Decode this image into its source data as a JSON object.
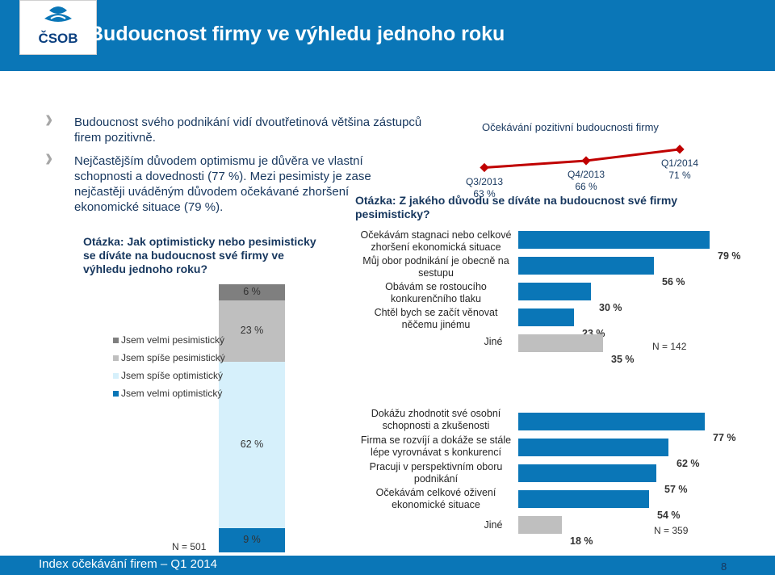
{
  "header": {
    "title": "Budoucnost firmy ve výhledu jednoho roku",
    "logo_text": "ČSOB"
  },
  "bullets": [
    "Budoucnost svého podnikání vidí dvoutřetinová většina zástupců firem pozitivně.",
    "Nejčastějším důvodem optimismu je důvěra ve vlastní schopnosti a dovednosti (77 %). Mezi pesimisty je zase nejčastěji uváděným důvodem očekávané zhoršení ekonomické situace (79 %)."
  ],
  "chart_data": [
    {
      "type": "line",
      "title": "Očekávání pozitivní budoucnosti firmy",
      "categories": [
        "Q3/2013",
        "Q4/2013",
        "Q1/2014"
      ],
      "values": [
        63,
        66,
        71
      ],
      "value_labels": [
        "63 %",
        "66 %",
        "71 %"
      ],
      "color": "#c00000"
    },
    {
      "type": "bar",
      "stacked": true,
      "title": "Otázka: Jak optimisticky nebo pesimisticky se díváte na budoucnost své firmy ve výhledu jednoho roku?",
      "legend": [
        "Jsem velmi pesimistický",
        "Jsem spíše pesimistický",
        "Jsem spíše optimistický",
        "Jsem velmi optimistický"
      ],
      "segments": [
        {
          "name": "Jsem velmi pesimistický",
          "value": 6,
          "label": "6 %",
          "color": "#7f7f7f"
        },
        {
          "name": "Jsem spíše pesimistický",
          "value": 23,
          "label": "23 %",
          "color": "#bfbfbf"
        },
        {
          "name": "Jsem spíše optimistický",
          "value": 62,
          "label": "62 %",
          "color": "#d6f0fb"
        },
        {
          "name": "Jsem velmi optimistický",
          "value": 9,
          "label": "9 %",
          "color": "#0a76b7"
        }
      ],
      "n_label": "N = 501"
    },
    {
      "type": "bar",
      "orientation": "horizontal",
      "title": "Otázka: Z jakého důvodu se díváte na budoucnost své firmy pesimisticky?",
      "categories": [
        "Očekávám stagnaci nebo celkové zhoršení ekonomická situace",
        "Můj obor podnikání je obecně na sestupu",
        "Obávám se rostoucího konkurenčního tlaku",
        "Chtěl bych se začít věnovat něčemu jinému",
        "Jiné"
      ],
      "values": [
        79,
        56,
        30,
        23,
        35
      ],
      "value_labels": [
        "79 %",
        "56 %",
        "30 %",
        "23 %",
        "35 %"
      ],
      "colors": [
        "#0a76b7",
        "#0a76b7",
        "#0a76b7",
        "#0a76b7",
        "#bfbfbf"
      ],
      "n_label": "N = 142"
    },
    {
      "type": "bar",
      "orientation": "horizontal",
      "categories": [
        "Dokážu zhodnotit své osobní schopnosti a zkušenosti",
        "Firma se rozvíjí a dokáže se stále lépe vyrovnávat s konkurencí",
        "Pracuji v perspektivním oboru podnikání",
        "Očekávám celkové oživení ekonomické situace",
        "Jiné"
      ],
      "values": [
        77,
        62,
        57,
        54,
        18
      ],
      "value_labels": [
        "77 %",
        "62 %",
        "57 %",
        "54 %",
        "18 %"
      ],
      "colors": [
        "#0a76b7",
        "#0a76b7",
        "#0a76b7",
        "#0a76b7",
        "#bfbfbf"
      ],
      "n_label": "N = 359"
    }
  ],
  "footer": {
    "text": "Index očekávání firem – Q1 2014",
    "page_number": "8"
  }
}
